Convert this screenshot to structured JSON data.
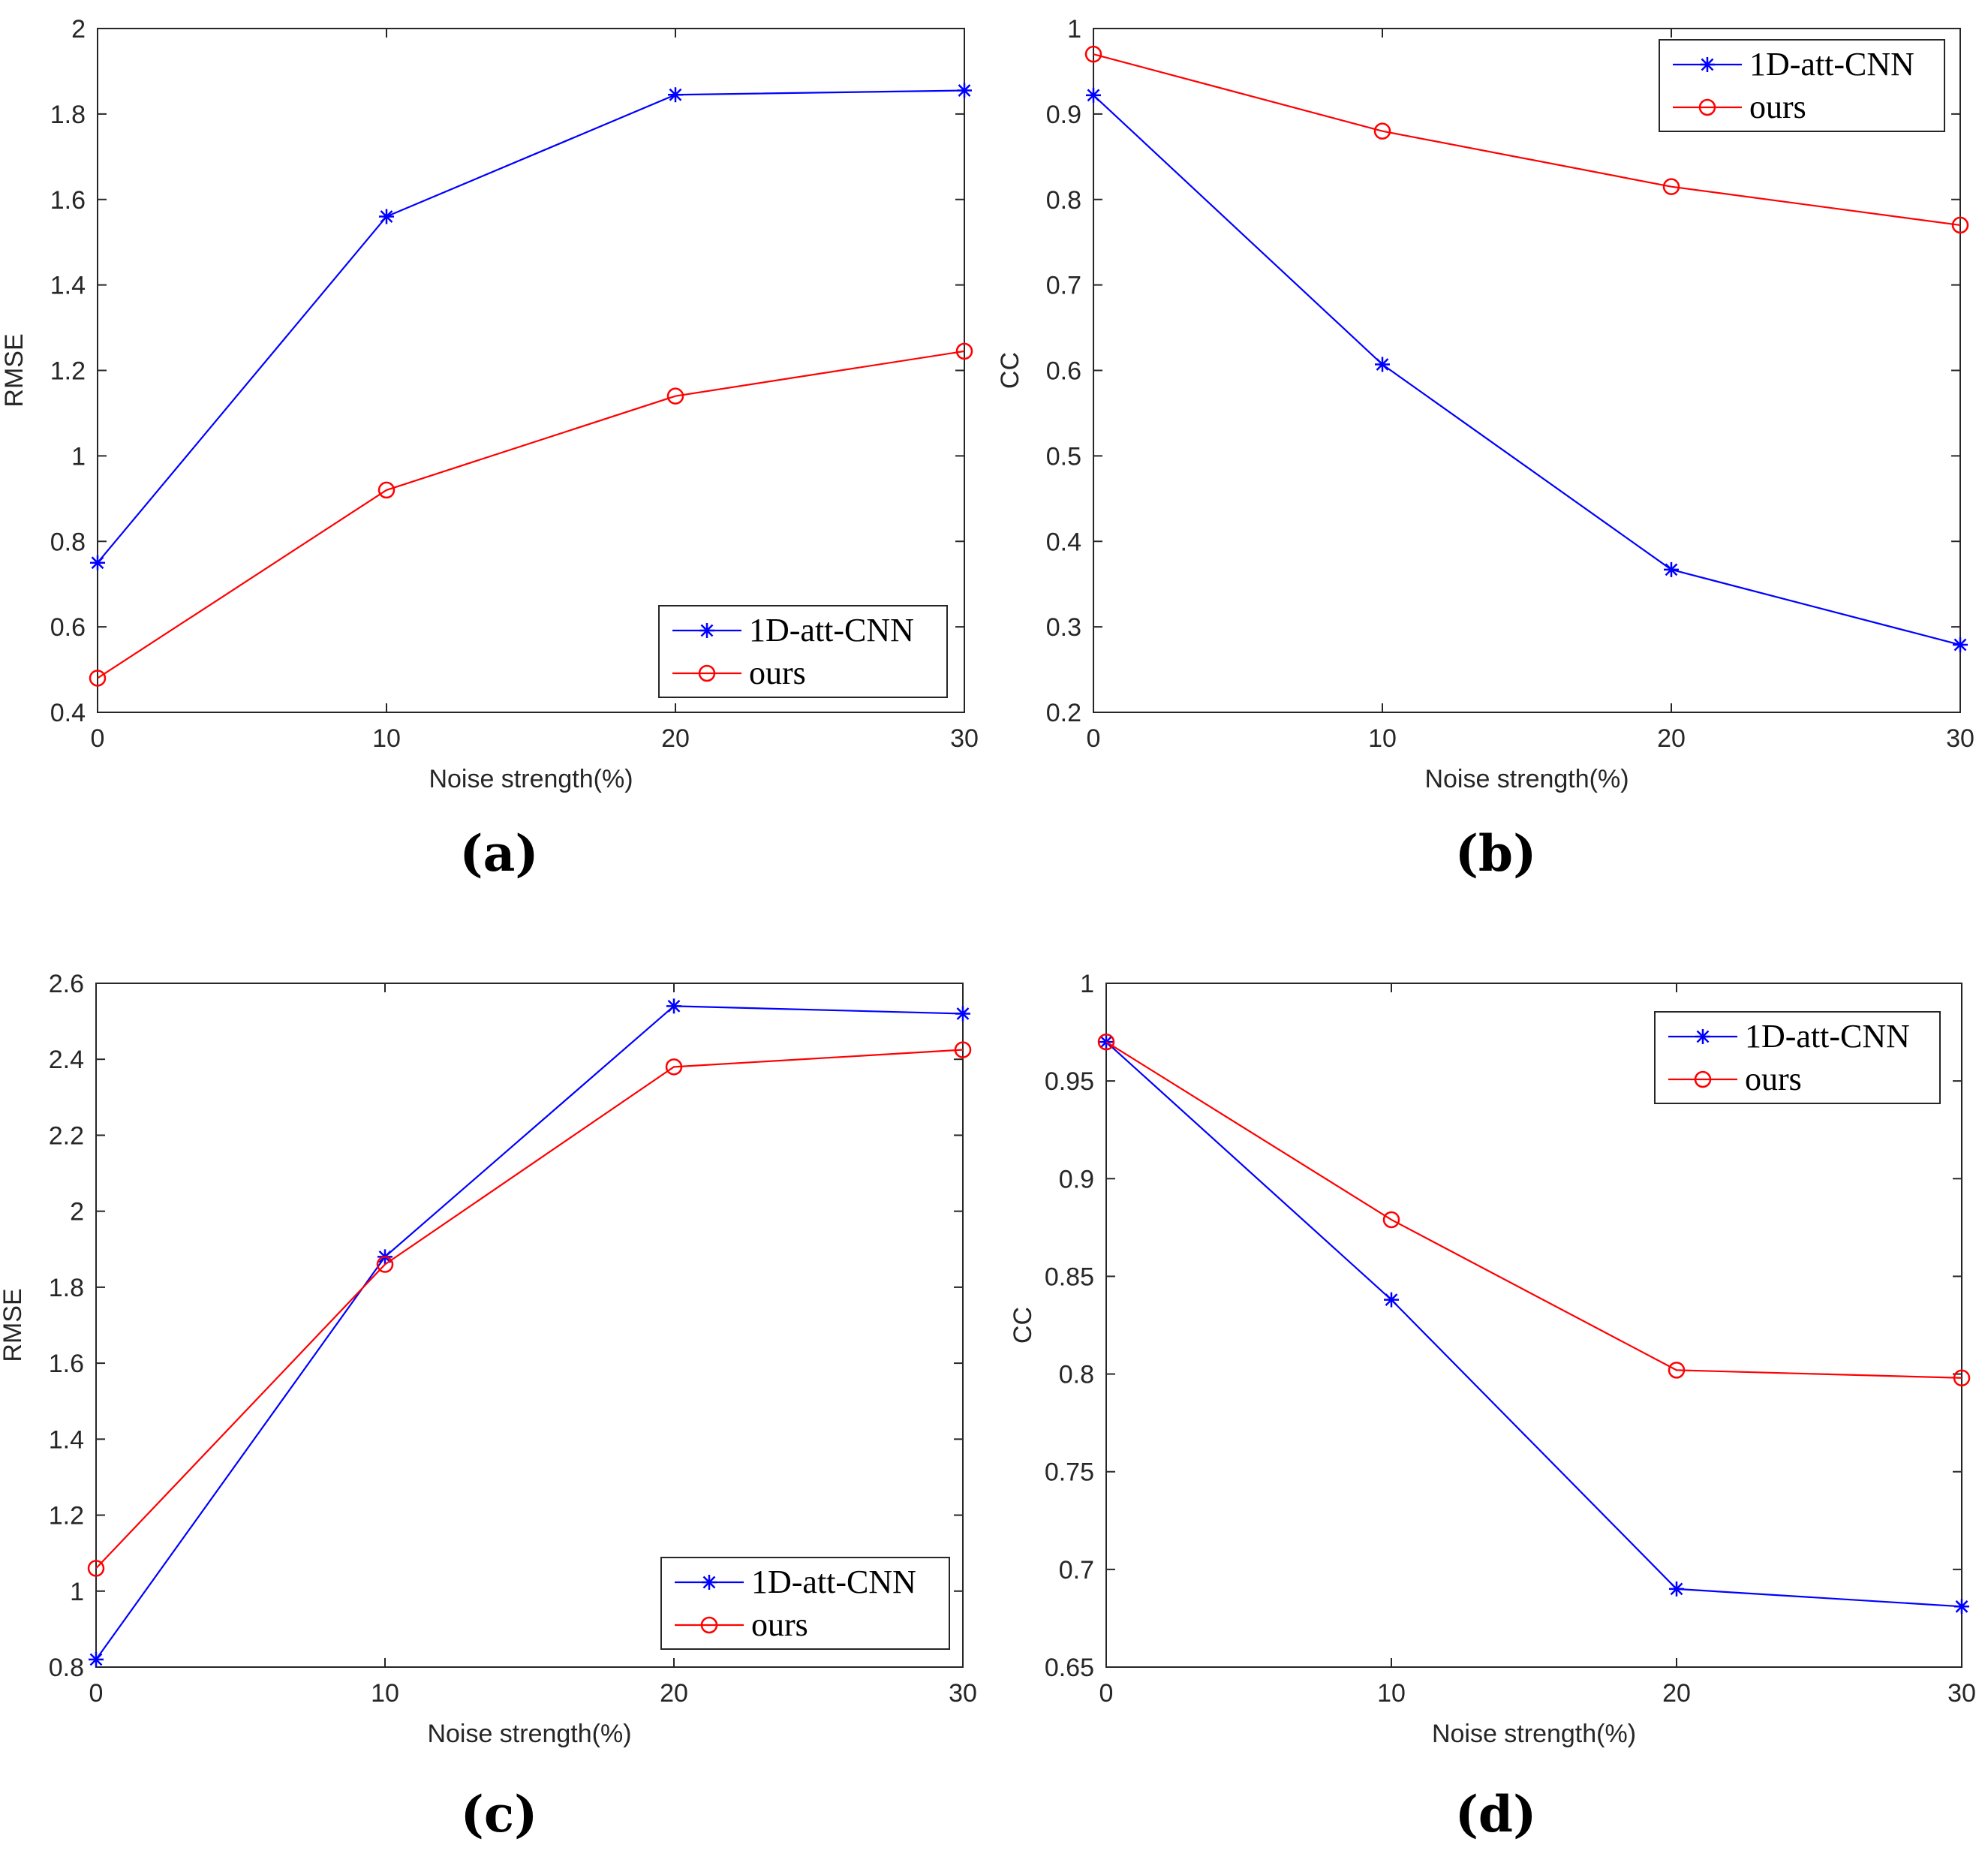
{
  "figure": {
    "panel_labels": [
      "(a)",
      "(b)",
      "(c)",
      "(d)"
    ],
    "colors": {
      "series_1": "#0000ff",
      "series_2": "#ff0000",
      "axis": "#262626"
    }
  },
  "chart_data": [
    {
      "type": "line",
      "panel": "(a)",
      "xlabel": "Noise strength(%)",
      "ylabel": "RMSE",
      "x": [
        0,
        10,
        20,
        30
      ],
      "xlim": [
        0,
        30
      ],
      "ylim": [
        0.4,
        2.0
      ],
      "xticks": [
        "0",
        "10",
        "20",
        "30"
      ],
      "yticks": [
        "0.4",
        "0.6",
        "0.8",
        "1",
        "1.2",
        "1.4",
        "1.6",
        "1.8",
        "2"
      ],
      "legend": {
        "placement": "bottom-right",
        "entries": [
          "1D-att-CNN",
          "ours"
        ]
      },
      "series": [
        {
          "name": "1D-att-CNN",
          "marker": "asterisk",
          "color": "#0000ff",
          "values": [
            0.75,
            1.56,
            1.845,
            1.855
          ]
        },
        {
          "name": "ours",
          "marker": "circle",
          "color": "#ff0000",
          "values": [
            0.48,
            0.92,
            1.14,
            1.245
          ]
        }
      ]
    },
    {
      "type": "line",
      "panel": "(b)",
      "xlabel": "Noise strength(%)",
      "ylabel": "CC",
      "x": [
        0,
        10,
        20,
        30
      ],
      "xlim": [
        0,
        30
      ],
      "ylim": [
        0.2,
        1.0
      ],
      "xticks": [
        "0",
        "10",
        "20",
        "30"
      ],
      "yticks": [
        "0.2",
        "0.3",
        "0.4",
        "0.5",
        "0.6",
        "0.7",
        "0.8",
        "0.9",
        "1"
      ],
      "legend": {
        "placement": "top-right",
        "entries": [
          "1D-att-CNN",
          "ours"
        ]
      },
      "series": [
        {
          "name": "1D-att-CNN",
          "marker": "asterisk",
          "color": "#0000ff",
          "values": [
            0.922,
            0.607,
            0.367,
            0.279
          ]
        },
        {
          "name": "ours",
          "marker": "circle",
          "color": "#ff0000",
          "values": [
            0.97,
            0.88,
            0.815,
            0.77
          ]
        }
      ]
    },
    {
      "type": "line",
      "panel": "(c)",
      "xlabel": "Noise strength(%)",
      "ylabel": "RMSE",
      "x": [
        0,
        10,
        20,
        30
      ],
      "xlim": [
        0,
        30
      ],
      "ylim": [
        0.8,
        2.6
      ],
      "xticks": [
        "0",
        "10",
        "20",
        "30"
      ],
      "yticks": [
        "0.8",
        "1",
        "1.2",
        "1.4",
        "1.6",
        "1.8",
        "2",
        "2.2",
        "2.4",
        "2.6"
      ],
      "legend": {
        "placement": "bottom-right",
        "entries": [
          "1D-att-CNN",
          "ours"
        ]
      },
      "series": [
        {
          "name": "1D-att-CNN",
          "marker": "asterisk",
          "color": "#0000ff",
          "values": [
            0.82,
            1.88,
            2.54,
            2.52
          ]
        },
        {
          "name": "ours",
          "marker": "circle",
          "color": "#ff0000",
          "values": [
            1.06,
            1.86,
            2.38,
            2.425
          ]
        }
      ]
    },
    {
      "type": "line",
      "panel": "(d)",
      "xlabel": "Noise strength(%)",
      "ylabel": "CC",
      "x": [
        0,
        10,
        20,
        30
      ],
      "xlim": [
        0,
        30
      ],
      "ylim": [
        0.65,
        1.0
      ],
      "xticks": [
        "0",
        "10",
        "20",
        "30"
      ],
      "yticks": [
        "0.65",
        "0.7",
        "0.75",
        "0.8",
        "0.85",
        "0.9",
        "0.95",
        "1"
      ],
      "legend": {
        "placement": "top-right",
        "entries": [
          "1D-att-CNN",
          "ours"
        ]
      },
      "series": [
        {
          "name": "1D-att-CNN",
          "marker": "asterisk",
          "color": "#0000ff",
          "values": [
            0.97,
            0.838,
            0.69,
            0.681
          ]
        },
        {
          "name": "ours",
          "marker": "circle",
          "color": "#ff0000",
          "values": [
            0.97,
            0.879,
            0.802,
            0.798
          ]
        }
      ]
    }
  ]
}
